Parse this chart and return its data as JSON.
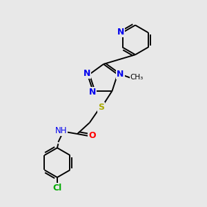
{
  "background_color": "#e8e8e8",
  "atom_colors": {
    "N": "#0000ee",
    "O": "#ff0000",
    "S": "#aaaa00",
    "Cl": "#00aa00",
    "C": "#000000",
    "H": "#555555"
  },
  "bond_color": "#000000",
  "font_size_atoms": 8.5,
  "figsize": [
    3.0,
    3.0
  ],
  "dpi": 100,
  "xlim": [
    0,
    10
  ],
  "ylim": [
    0,
    10
  ]
}
